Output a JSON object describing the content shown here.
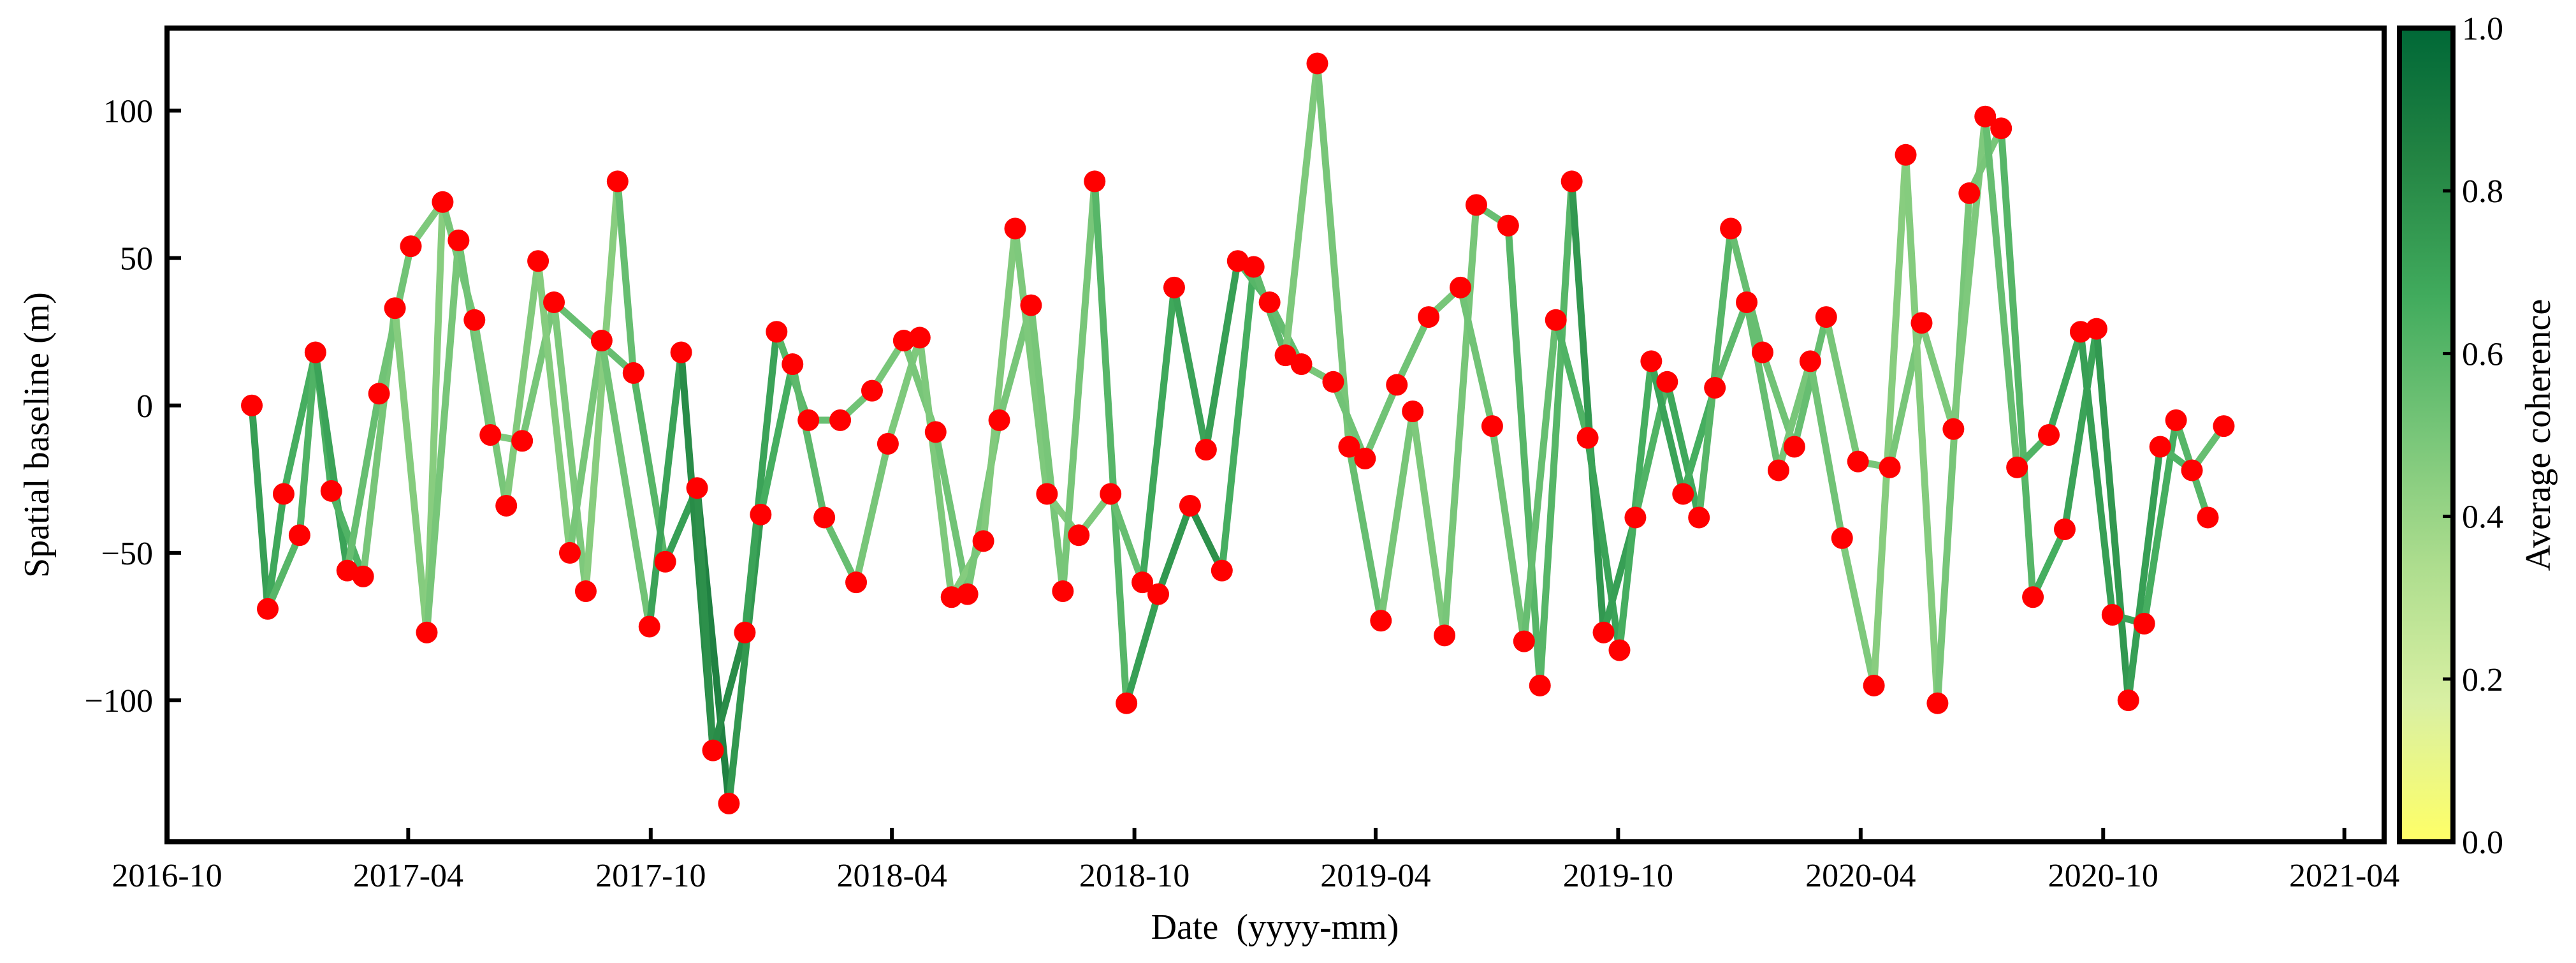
{
  "chart_data": {
    "type": "line",
    "xlabel": "Date  (yyyy-mm)",
    "ylabel": "Spatial baseline (m)",
    "xlim": [
      "2016-10",
      "2021-05"
    ],
    "ylim": [
      -148,
      128
    ],
    "x_ticks": [
      "2016-10",
      "2017-04",
      "2017-10",
      "2018-04",
      "2018-10",
      "2019-04",
      "2019-10",
      "2020-04",
      "2020-10",
      "2021-04"
    ],
    "y_ticks": [
      -100,
      -50,
      0,
      50,
      100
    ],
    "colorbar": {
      "label": "Average coherence",
      "range": [
        0.0,
        1.0
      ],
      "ticks": [
        "0.0",
        "0.2",
        "0.4",
        "0.6",
        "0.8",
        "1.0"
      ],
      "colors": [
        "#ffff66",
        "#d9f0a3",
        "#addd8e",
        "#78c679",
        "#41ab5d",
        "#238443",
        "#006837"
      ]
    },
    "node_color": "#ff0000",
    "nodes": [
      {
        "date": "2016-12-04",
        "baseline": 0
      },
      {
        "date": "2016-12-16",
        "baseline": -69
      },
      {
        "date": "2016-12-28",
        "baseline": -30
      },
      {
        "date": "2017-01-09",
        "baseline": -44
      },
      {
        "date": "2017-01-21",
        "baseline": 18
      },
      {
        "date": "2017-02-02",
        "baseline": -29
      },
      {
        "date": "2017-02-14",
        "baseline": -56
      },
      {
        "date": "2017-02-26",
        "baseline": -58
      },
      {
        "date": "2017-03-10",
        "baseline": 4
      },
      {
        "date": "2017-03-22",
        "baseline": 33
      },
      {
        "date": "2017-04-03",
        "baseline": 54
      },
      {
        "date": "2017-04-15",
        "baseline": -77
      },
      {
        "date": "2017-04-27",
        "baseline": 69
      },
      {
        "date": "2017-05-09",
        "baseline": 56
      },
      {
        "date": "2017-05-21",
        "baseline": 29
      },
      {
        "date": "2017-06-02",
        "baseline": -10
      },
      {
        "date": "2017-06-14",
        "baseline": -34
      },
      {
        "date": "2017-06-26",
        "baseline": -12
      },
      {
        "date": "2017-07-08",
        "baseline": 49
      },
      {
        "date": "2017-07-20",
        "baseline": 35
      },
      {
        "date": "2017-08-01",
        "baseline": -50
      },
      {
        "date": "2017-08-13",
        "baseline": -63
      },
      {
        "date": "2017-08-25",
        "baseline": 22
      },
      {
        "date": "2017-09-06",
        "baseline": 76
      },
      {
        "date": "2017-09-18",
        "baseline": 11
      },
      {
        "date": "2017-09-30",
        "baseline": -75
      },
      {
        "date": "2017-10-12",
        "baseline": -53
      },
      {
        "date": "2017-10-24",
        "baseline": 18
      },
      {
        "date": "2017-11-05",
        "baseline": -28
      },
      {
        "date": "2017-11-17",
        "baseline": -117
      },
      {
        "date": "2017-11-29",
        "baseline": -135
      },
      {
        "date": "2017-12-11",
        "baseline": -77
      },
      {
        "date": "2017-12-23",
        "baseline": -37
      },
      {
        "date": "2018-01-04",
        "baseline": 25
      },
      {
        "date": "2018-01-16",
        "baseline": 14
      },
      {
        "date": "2018-01-28",
        "baseline": -5
      },
      {
        "date": "2018-02-09",
        "baseline": -38
      },
      {
        "date": "2018-02-21",
        "baseline": -5
      },
      {
        "date": "2018-03-05",
        "baseline": -60
      },
      {
        "date": "2018-03-17",
        "baseline": 5
      },
      {
        "date": "2018-03-29",
        "baseline": -13
      },
      {
        "date": "2018-04-10",
        "baseline": 22
      },
      {
        "date": "2018-04-22",
        "baseline": 23
      },
      {
        "date": "2018-05-04",
        "baseline": -9
      },
      {
        "date": "2018-05-16",
        "baseline": -65
      },
      {
        "date": "2018-05-28",
        "baseline": -64
      },
      {
        "date": "2018-06-09",
        "baseline": -46
      },
      {
        "date": "2018-06-21",
        "baseline": -5
      },
      {
        "date": "2018-07-03",
        "baseline": 60
      },
      {
        "date": "2018-07-15",
        "baseline": 34
      },
      {
        "date": "2018-07-27",
        "baseline": -30
      },
      {
        "date": "2018-08-08",
        "baseline": -63
      },
      {
        "date": "2018-08-20",
        "baseline": -44
      },
      {
        "date": "2018-09-01",
        "baseline": 76
      },
      {
        "date": "2018-09-13",
        "baseline": -30
      },
      {
        "date": "2018-09-25",
        "baseline": -101
      },
      {
        "date": "2018-10-07",
        "baseline": -60
      },
      {
        "date": "2018-10-19",
        "baseline": -64
      },
      {
        "date": "2018-10-31",
        "baseline": 40
      },
      {
        "date": "2018-11-12",
        "baseline": -34
      },
      {
        "date": "2018-11-24",
        "baseline": -15
      },
      {
        "date": "2018-12-06",
        "baseline": -56
      },
      {
        "date": "2018-12-18",
        "baseline": 49
      },
      {
        "date": "2018-12-30",
        "baseline": 47
      },
      {
        "date": "2019-01-11",
        "baseline": 35
      },
      {
        "date": "2019-01-23",
        "baseline": 17
      },
      {
        "date": "2019-02-04",
        "baseline": 14
      },
      {
        "date": "2019-02-16",
        "baseline": 116
      },
      {
        "date": "2019-02-28",
        "baseline": 8
      },
      {
        "date": "2019-03-12",
        "baseline": -14
      },
      {
        "date": "2019-03-24",
        "baseline": -18
      },
      {
        "date": "2019-04-05",
        "baseline": -73
      },
      {
        "date": "2019-04-17",
        "baseline": 7
      },
      {
        "date": "2019-04-29",
        "baseline": -2
      },
      {
        "date": "2019-05-11",
        "baseline": 30
      },
      {
        "date": "2019-05-23",
        "baseline": -78
      },
      {
        "date": "2019-06-04",
        "baseline": 40
      },
      {
        "date": "2019-06-16",
        "baseline": 68
      },
      {
        "date": "2019-06-28",
        "baseline": -7
      },
      {
        "date": "2019-07-10",
        "baseline": 61
      },
      {
        "date": "2019-07-22",
        "baseline": -80
      },
      {
        "date": "2019-08-03",
        "baseline": -95
      },
      {
        "date": "2019-08-15",
        "baseline": 29
      },
      {
        "date": "2019-08-27",
        "baseline": 76
      },
      {
        "date": "2019-09-08",
        "baseline": -11
      },
      {
        "date": "2019-09-20",
        "baseline": -77
      },
      {
        "date": "2019-10-02",
        "baseline": -83
      },
      {
        "date": "2019-10-14",
        "baseline": -38
      },
      {
        "date": "2019-10-26",
        "baseline": 15
      },
      {
        "date": "2019-11-07",
        "baseline": 8
      },
      {
        "date": "2019-11-19",
        "baseline": -30
      },
      {
        "date": "2019-12-01",
        "baseline": -38
      },
      {
        "date": "2019-12-13",
        "baseline": 6
      },
      {
        "date": "2019-12-25",
        "baseline": 60
      },
      {
        "date": "2020-01-06",
        "baseline": 35
      },
      {
        "date": "2020-01-18",
        "baseline": 18
      },
      {
        "date": "2020-01-30",
        "baseline": -22
      },
      {
        "date": "2020-02-11",
        "baseline": -14
      },
      {
        "date": "2020-02-23",
        "baseline": 15
      },
      {
        "date": "2020-03-06",
        "baseline": 30
      },
      {
        "date": "2020-03-18",
        "baseline": -45
      },
      {
        "date": "2020-03-30",
        "baseline": -19
      },
      {
        "date": "2020-04-11",
        "baseline": -95
      },
      {
        "date": "2020-04-23",
        "baseline": -21
      },
      {
        "date": "2020-05-05",
        "baseline": 85
      },
      {
        "date": "2020-05-17",
        "baseline": 28
      },
      {
        "date": "2020-05-29",
        "baseline": -101
      },
      {
        "date": "2020-06-10",
        "baseline": -8
      },
      {
        "date": "2020-06-22",
        "baseline": 72
      },
      {
        "date": "2020-07-04",
        "baseline": 98
      },
      {
        "date": "2020-07-16",
        "baseline": 94
      },
      {
        "date": "2020-07-28",
        "baseline": -21
      },
      {
        "date": "2020-08-09",
        "baseline": -65
      },
      {
        "date": "2020-08-21",
        "baseline": -10
      },
      {
        "date": "2020-09-02",
        "baseline": -42
      },
      {
        "date": "2020-09-14",
        "baseline": 25
      },
      {
        "date": "2020-09-26",
        "baseline": 26
      },
      {
        "date": "2020-10-08",
        "baseline": -71
      },
      {
        "date": "2020-10-20",
        "baseline": -100
      },
      {
        "date": "2020-11-01",
        "baseline": -74
      },
      {
        "date": "2020-11-13",
        "baseline": -14
      },
      {
        "date": "2020-11-25",
        "baseline": -5
      },
      {
        "date": "2020-12-07",
        "baseline": -22
      },
      {
        "date": "2020-12-19",
        "baseline": -38
      },
      {
        "date": "2020-12-31",
        "baseline": -7
      }
    ],
    "edges": [
      [
        0,
        1,
        0.72
      ],
      [
        1,
        2,
        0.68
      ],
      [
        1,
        3,
        0.6
      ],
      [
        2,
        4,
        0.65
      ],
      [
        3,
        4,
        0.62
      ],
      [
        4,
        5,
        0.64
      ],
      [
        4,
        6,
        0.7
      ],
      [
        5,
        7,
        0.62
      ],
      [
        6,
        7,
        0.58
      ],
      [
        6,
        8,
        0.55
      ],
      [
        7,
        9,
        0.5
      ],
      [
        8,
        10,
        0.52
      ],
      [
        9,
        11,
        0.46
      ],
      [
        10,
        12,
        0.48
      ],
      [
        11,
        12,
        0.45
      ],
      [
        11,
        13,
        0.5
      ],
      [
        12,
        14,
        0.5
      ],
      [
        13,
        15,
        0.52
      ],
      [
        14,
        16,
        0.5
      ],
      [
        15,
        17,
        0.48
      ],
      [
        16,
        18,
        0.47
      ],
      [
        17,
        19,
        0.5
      ],
      [
        18,
        20,
        0.46
      ],
      [
        19,
        21,
        0.48
      ],
      [
        19,
        24,
        0.55
      ],
      [
        20,
        22,
        0.5
      ],
      [
        21,
        23,
        0.45
      ],
      [
        22,
        25,
        0.52
      ],
      [
        23,
        24,
        0.55
      ],
      [
        24,
        26,
        0.6
      ],
      [
        25,
        27,
        0.7
      ],
      [
        26,
        28,
        0.72
      ],
      [
        27,
        29,
        0.8
      ],
      [
        28,
        30,
        0.85
      ],
      [
        28,
        29,
        0.78
      ],
      [
        29,
        31,
        0.8
      ],
      [
        30,
        32,
        0.75
      ],
      [
        31,
        33,
        0.7
      ],
      [
        32,
        34,
        0.65
      ],
      [
        33,
        35,
        0.6
      ],
      [
        34,
        36,
        0.58
      ],
      [
        35,
        37,
        0.55
      ],
      [
        36,
        38,
        0.55
      ],
      [
        37,
        39,
        0.52
      ],
      [
        38,
        40,
        0.5
      ],
      [
        39,
        41,
        0.5
      ],
      [
        40,
        42,
        0.48
      ],
      [
        41,
        43,
        0.5
      ],
      [
        42,
        44,
        0.48
      ],
      [
        43,
        45,
        0.52
      ],
      [
        44,
        46,
        0.46
      ],
      [
        45,
        47,
        0.5
      ],
      [
        46,
        48,
        0.47
      ],
      [
        47,
        49,
        0.5
      ],
      [
        48,
        50,
        0.48
      ],
      [
        49,
        51,
        0.5
      ],
      [
        50,
        52,
        0.47
      ],
      [
        51,
        53,
        0.5
      ],
      [
        52,
        54,
        0.48
      ],
      [
        53,
        55,
        0.6
      ],
      [
        54,
        56,
        0.55
      ],
      [
        55,
        57,
        0.72
      ],
      [
        56,
        58,
        0.68
      ],
      [
        57,
        59,
        0.75
      ],
      [
        58,
        60,
        0.7
      ],
      [
        59,
        61,
        0.78
      ],
      [
        60,
        62,
        0.72
      ],
      [
        61,
        63,
        0.65
      ],
      [
        62,
        64,
        0.6
      ],
      [
        63,
        65,
        0.58
      ],
      [
        64,
        66,
        0.56
      ],
      [
        65,
        67,
        0.48
      ],
      [
        66,
        68,
        0.5
      ],
      [
        67,
        69,
        0.5
      ],
      [
        68,
        70,
        0.52
      ],
      [
        69,
        71,
        0.55
      ],
      [
        70,
        72,
        0.52
      ],
      [
        71,
        73,
        0.5
      ],
      [
        72,
        74,
        0.52
      ],
      [
        73,
        75,
        0.48
      ],
      [
        74,
        76,
        0.5
      ],
      [
        75,
        77,
        0.5
      ],
      [
        76,
        78,
        0.52
      ],
      [
        77,
        79,
        0.55
      ],
      [
        78,
        80,
        0.52
      ],
      [
        79,
        81,
        0.6
      ],
      [
        80,
        82,
        0.55
      ],
      [
        81,
        83,
        0.6
      ],
      [
        82,
        84,
        0.62
      ],
      [
        83,
        85,
        0.75
      ],
      [
        84,
        86,
        0.7
      ],
      [
        85,
        87,
        0.72
      ],
      [
        86,
        88,
        0.65
      ],
      [
        87,
        89,
        0.62
      ],
      [
        88,
        90,
        0.7
      ],
      [
        89,
        91,
        0.68
      ],
      [
        90,
        92,
        0.65
      ],
      [
        91,
        93,
        0.6
      ],
      [
        92,
        94,
        0.58
      ],
      [
        93,
        95,
        0.55
      ],
      [
        94,
        96,
        0.55
      ],
      [
        95,
        97,
        0.52
      ],
      [
        96,
        98,
        0.5
      ],
      [
        97,
        99,
        0.55
      ],
      [
        98,
        100,
        0.52
      ],
      [
        99,
        101,
        0.5
      ],
      [
        100,
        102,
        0.48
      ],
      [
        101,
        103,
        0.5
      ],
      [
        102,
        104,
        0.45
      ],
      [
        103,
        105,
        0.5
      ],
      [
        104,
        106,
        0.46
      ],
      [
        105,
        107,
        0.48
      ],
      [
        106,
        108,
        0.5
      ],
      [
        107,
        109,
        0.48
      ],
      [
        108,
        110,
        0.5
      ],
      [
        109,
        111,
        0.55
      ],
      [
        110,
        112,
        0.6
      ],
      [
        111,
        113,
        0.62
      ],
      [
        112,
        114,
        0.65
      ],
      [
        113,
        115,
        0.68
      ],
      [
        114,
        116,
        0.7
      ],
      [
        115,
        117,
        0.72
      ],
      [
        116,
        118,
        0.75
      ],
      [
        117,
        119,
        0.7
      ],
      [
        118,
        120,
        0.72
      ],
      [
        119,
        121,
        0.65
      ],
      [
        120,
        122,
        0.62
      ],
      [
        121,
        123,
        0.6
      ],
      [
        122,
        124,
        0.55
      ]
    ]
  }
}
